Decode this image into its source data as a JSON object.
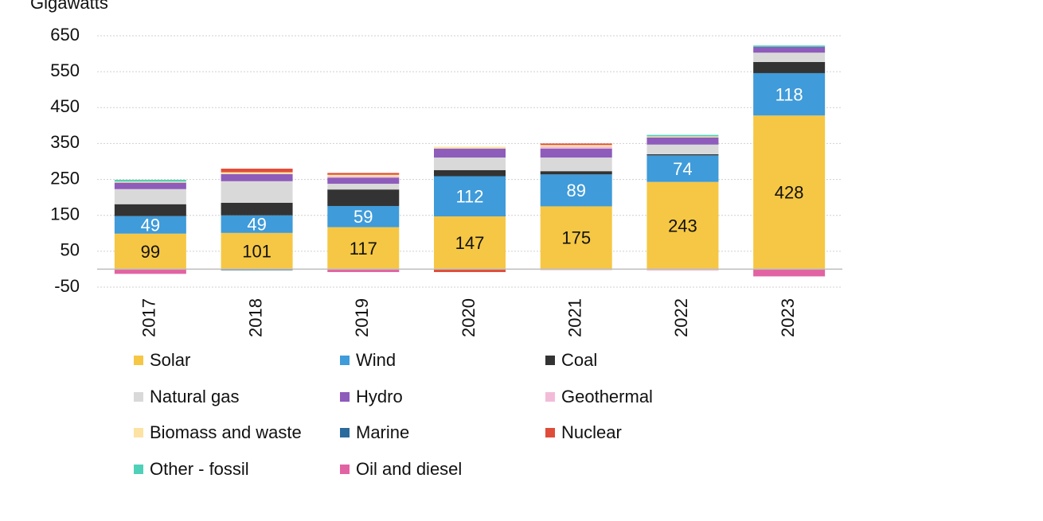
{
  "chart_data": {
    "type": "stacked_bar",
    "y_label": "Gigawatts",
    "categories": [
      "2017",
      "2018",
      "2019",
      "2020",
      "2021",
      "2022",
      "2023"
    ],
    "ylim": [
      -50,
      650
    ],
    "yticks": [
      -50,
      50,
      150,
      250,
      350,
      450,
      550,
      650
    ],
    "grid": true,
    "series": [
      {
        "name": "Solar",
        "color": "#f6c744",
        "values": [
          99,
          101,
          117,
          147,
          175,
          243,
          428
        ],
        "show_labels": true,
        "label_color": "#111111"
      },
      {
        "name": "Wind",
        "color": "#3f9bd9",
        "values": [
          49,
          49,
          59,
          112,
          89,
          74,
          118
        ],
        "show_labels": true,
        "label_color": "#ffffff"
      },
      {
        "name": "Coal",
        "color": "#333333",
        "values": [
          33,
          35,
          46,
          17,
          9,
          3,
          31
        ]
      },
      {
        "name": "Natural gas",
        "color": "#d9d9d9",
        "values": [
          42,
          60,
          16,
          35,
          38,
          27,
          26
        ]
      },
      {
        "name": "Hydro",
        "color": "#8e5cbb",
        "values": [
          18,
          20,
          17,
          25,
          25,
          20,
          16
        ]
      },
      {
        "name": "Geothermal",
        "color": "#f2bcd9",
        "values": [
          0,
          0,
          3,
          0,
          5,
          -4,
          0
        ]
      },
      {
        "name": "Biomass and waste",
        "color": "#fde3a3",
        "values": [
          3,
          5,
          5,
          5,
          5,
          3,
          0
        ]
      },
      {
        "name": "Marine",
        "color": "#2b6b9c",
        "values": [
          0,
          -3,
          0,
          0,
          0,
          0,
          0
        ]
      },
      {
        "name": "Nuclear",
        "color": "#e04c3a",
        "values": [
          0,
          10,
          5,
          -8,
          4,
          0,
          0
        ]
      },
      {
        "name": "Other - fossil",
        "color": "#4fd1b9",
        "values": [
          5,
          0,
          0,
          0,
          0,
          4,
          4
        ]
      },
      {
        "name": "Oil and diesel",
        "color": "#e263a3",
        "values": [
          -13,
          0,
          -8,
          0,
          -2,
          0,
          -20
        ]
      }
    ]
  }
}
